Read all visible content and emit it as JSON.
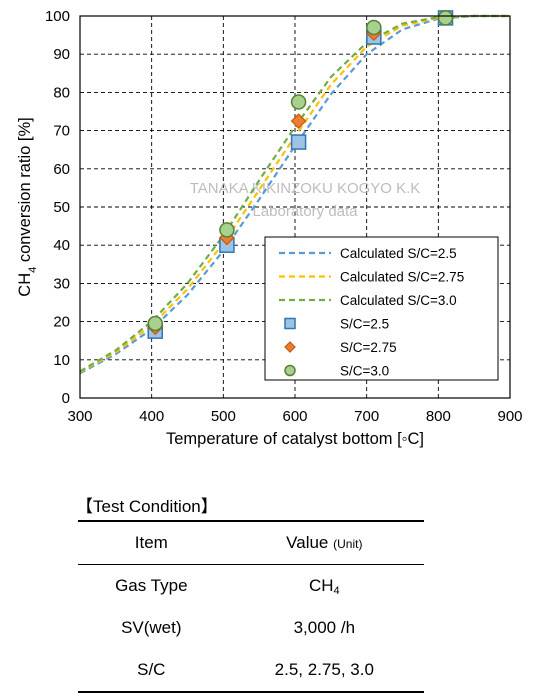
{
  "chart_data": {
    "type": "line",
    "xlabel": "Temperature of catalyst bottom [◦C]",
    "ylabel_main": "CH",
    "ylabel_sub": "4",
    "ylabel_rest": " conversion ratio [%]",
    "xlim": [
      300,
      900
    ],
    "ylim": [
      0,
      100
    ],
    "xticks": [
      300,
      400,
      500,
      600,
      700,
      800,
      900
    ],
    "yticks": [
      0,
      10,
      20,
      30,
      40,
      50,
      60,
      70,
      80,
      90,
      100
    ],
    "grid": true,
    "legend_position": "lower-right",
    "watermark": [
      "TANAKA KIKINZOKU KOGYO K.K",
      "Laboratory data"
    ],
    "calculated_series": [
      {
        "name": "Calculated S/C=2.5",
        "color": "#5b9bd5",
        "x": [
          300,
          350,
          400,
          450,
          500,
          550,
          600,
          650,
          700,
          750,
          800,
          850,
          900
        ],
        "y": [
          6.5,
          11.5,
          18,
          27,
          38.5,
          52,
          66,
          79.5,
          90,
          96.5,
          99.3,
          100,
          100
        ]
      },
      {
        "name": "Calculated S/C=2.75",
        "color": "#ffc000",
        "x": [
          300,
          350,
          400,
          450,
          500,
          550,
          600,
          650,
          700,
          750,
          800,
          850,
          900
        ],
        "y": [
          6.8,
          12,
          19,
          28.5,
          40.5,
          54.5,
          68.5,
          82,
          92,
          97.5,
          99.5,
          100,
          100
        ]
      },
      {
        "name": "Calculated S/C=3.0",
        "color": "#70ad47",
        "x": [
          300,
          350,
          400,
          450,
          500,
          550,
          600,
          650,
          700,
          750,
          800,
          850,
          900
        ],
        "y": [
          7,
          12.5,
          20,
          30,
          42.5,
          57,
          71,
          84,
          93,
          98,
          99.7,
          100,
          100
        ]
      }
    ],
    "measured_series": [
      {
        "name": "S/C=2.5",
        "marker": "square",
        "fill": "#9dc3e6",
        "stroke": "#2e75b6",
        "x": [
          405,
          505,
          605,
          710,
          810
        ],
        "y": [
          17.5,
          40,
          67,
          94.5,
          99.5
        ]
      },
      {
        "name": "S/C=2.75",
        "marker": "diamond",
        "fill": "#ed7d31",
        "stroke": "#c55a11",
        "x": [
          405,
          505,
          605,
          710,
          810
        ],
        "y": [
          18.5,
          42,
          72.5,
          95.5,
          99.5
        ]
      },
      {
        "name": "S/C=3.0",
        "marker": "circle",
        "fill": "#a9d18e",
        "stroke": "#548235",
        "x": [
          405,
          505,
          605,
          710,
          810
        ],
        "y": [
          19.5,
          44,
          77.5,
          97,
          99.5
        ]
      }
    ]
  },
  "conditions": {
    "title": "【Test Condition】",
    "headers": {
      "item": "Item",
      "value": "Value",
      "value_unit": "(Unit)"
    },
    "rows": [
      {
        "item": "Gas Type",
        "value_main": "CH",
        "value_sub": "4"
      },
      {
        "item": "SV(wet)",
        "value_main": "3,000 /h",
        "value_sub": ""
      },
      {
        "item": "S/C",
        "value_main": "2.5, 2.75, 3.0",
        "value_sub": ""
      }
    ]
  }
}
